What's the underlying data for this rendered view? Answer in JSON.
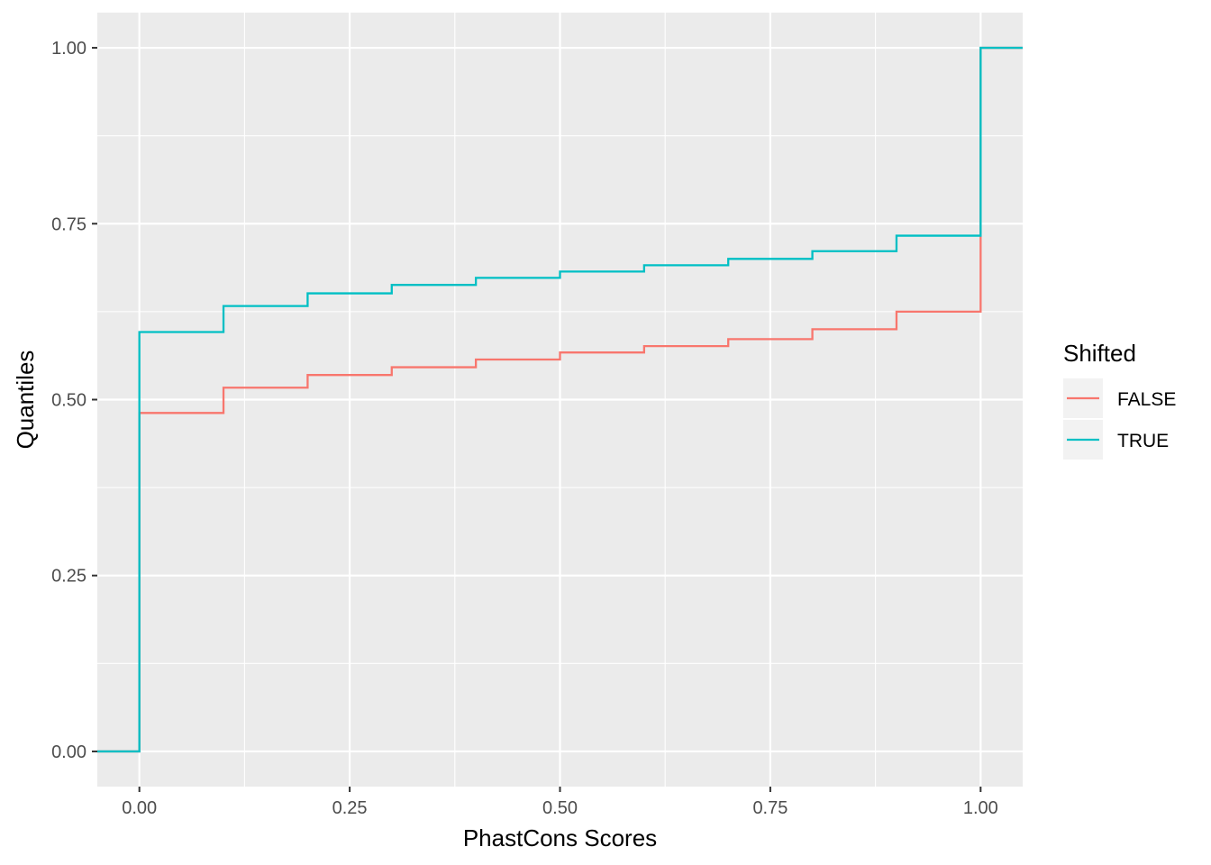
{
  "chart_data": {
    "type": "line",
    "step": true,
    "xlabel": "PhastCons Scores",
    "ylabel": "Quantiles",
    "xlim": [
      -0.05,
      1.05
    ],
    "ylim": [
      -0.05,
      1.05
    ],
    "x_ticks": [
      0.0,
      0.25,
      0.5,
      0.75,
      1.0
    ],
    "x_tick_labels": [
      "0.00",
      "0.25",
      "0.50",
      "0.75",
      "1.00"
    ],
    "y_ticks": [
      0.0,
      0.25,
      0.5,
      0.75,
      1.0
    ],
    "y_tick_labels": [
      "0.00",
      "0.25",
      "0.50",
      "0.75",
      "1.00"
    ],
    "grid": true,
    "background": "#ebebeb",
    "legend": {
      "title": "Shifted",
      "position": "right"
    },
    "series": [
      {
        "name": "FALSE",
        "color": "#f8766d",
        "x": [
          -0.05,
          0.0,
          0.1,
          0.2,
          0.3,
          0.4,
          0.5,
          0.6,
          0.7,
          0.8,
          0.9,
          1.0,
          1.05
        ],
        "y": [
          0.0,
          0.481,
          0.517,
          0.535,
          0.546,
          0.557,
          0.567,
          0.576,
          0.586,
          0.6,
          0.625,
          1.0,
          1.0
        ]
      },
      {
        "name": "TRUE",
        "color": "#00bfc4",
        "x": [
          -0.05,
          0.0,
          0.1,
          0.2,
          0.3,
          0.4,
          0.5,
          0.6,
          0.7,
          0.8,
          0.9,
          1.0,
          1.05
        ],
        "y": [
          0.0,
          0.596,
          0.633,
          0.651,
          0.663,
          0.673,
          0.682,
          0.691,
          0.7,
          0.711,
          0.733,
          1.0,
          1.0
        ]
      }
    ]
  }
}
